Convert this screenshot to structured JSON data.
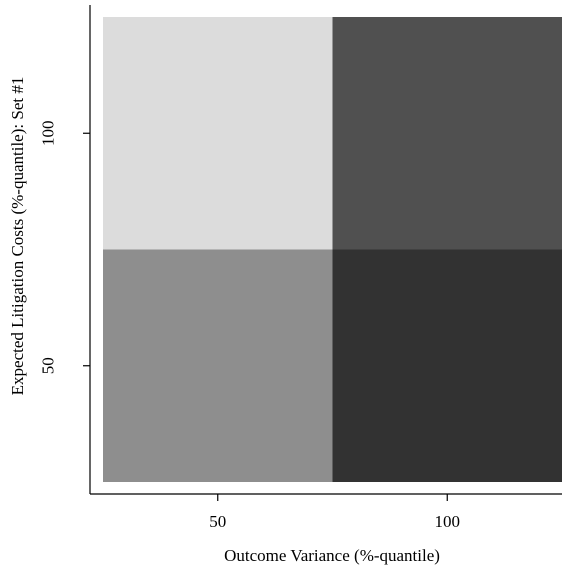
{
  "chart_data": {
    "type": "heatmap",
    "title": "",
    "xlabel": "Outcome Variance (%-quantile)",
    "ylabel": "Expected Litigation Costs (%-quantile): Set #1",
    "x_categories": [
      50,
      100
    ],
    "y_categories": [
      50,
      100
    ],
    "x_ticks": [
      "50",
      "100"
    ],
    "y_ticks": [
      "50",
      "100"
    ],
    "cells": [
      {
        "x": 50,
        "y": 100,
        "color": "#dcdcdc"
      },
      {
        "x": 100,
        "y": 100,
        "color": "#505050"
      },
      {
        "x": 50,
        "y": 50,
        "color": "#8e8e8e"
      },
      {
        "x": 100,
        "y": 50,
        "color": "#323232"
      }
    ],
    "grid": false,
    "legend": "none"
  }
}
